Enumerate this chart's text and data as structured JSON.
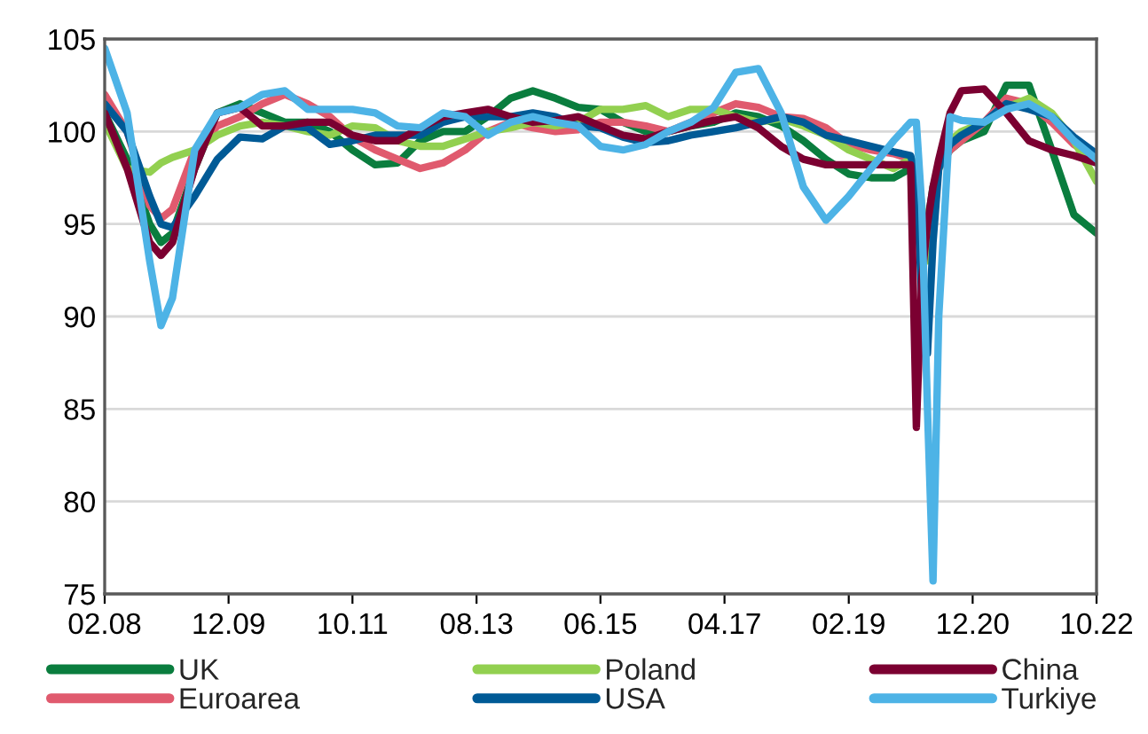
{
  "chart_data": {
    "type": "line",
    "x": [
      "2008-02",
      "2008-06",
      "2008-10",
      "2008-12",
      "2009-02",
      "2009-06",
      "2009-10",
      "2010-02",
      "2010-06",
      "2010-10",
      "2011-02",
      "2011-06",
      "2011-10",
      "2012-02",
      "2012-06",
      "2012-10",
      "2013-02",
      "2013-06",
      "2013-10",
      "2014-02",
      "2014-06",
      "2014-10",
      "2015-02",
      "2015-06",
      "2015-10",
      "2016-02",
      "2016-06",
      "2016-10",
      "2017-02",
      "2017-06",
      "2017-10",
      "2018-02",
      "2018-06",
      "2018-10",
      "2019-02",
      "2019-06",
      "2019-10",
      "2020-01",
      "2020-02",
      "2020-03",
      "2020-04",
      "2020-05",
      "2020-06",
      "2020-08",
      "2020-10",
      "2021-02",
      "2021-06",
      "2021-10",
      "2022-02",
      "2022-06",
      "2022-10"
    ],
    "series": [
      {
        "name": "UK",
        "color": "#0a7d3e",
        "values": [
          101,
          98.5,
          95,
          94,
          94.5,
          98,
          101,
          101.5,
          101,
          100.5,
          100.5,
          100,
          99,
          98.2,
          98.3,
          99.5,
          100,
          100,
          100.8,
          101.8,
          102.2,
          101.8,
          101.3,
          101.2,
          100.5,
          100,
          100,
          100.3,
          100.5,
          101,
          100.8,
          100.3,
          99.5,
          98.5,
          97.7,
          97.5,
          97.5,
          98,
          97.5,
          93,
          95,
          97,
          98,
          99,
          99.5,
          100,
          102.5,
          102.5,
          99,
          95.5,
          94.5
        ]
      },
      {
        "name": "Euroarea",
        "color": "#e05a6e",
        "values": [
          102,
          100,
          96,
          95.3,
          95.8,
          99,
          100.3,
          100.8,
          101.5,
          102,
          101.5,
          100.8,
          99.7,
          99,
          98.5,
          98,
          98.3,
          99,
          100,
          100.5,
          100.2,
          100,
          100.1,
          100.5,
          100.5,
          100.3,
          100,
          100.5,
          101,
          101.5,
          101.3,
          100.8,
          100.7,
          100.2,
          99.3,
          99,
          98.8,
          98.5,
          96,
          null,
          null,
          null,
          98,
          99,
          99.5,
          100.5,
          101.8,
          101.5,
          100.5,
          99.3,
          98.5
        ]
      },
      {
        "name": "Poland",
        "color": "#92d050",
        "values": [
          100.5,
          98,
          97.8,
          98.3,
          98.6,
          99,
          99.8,
          100.3,
          100.5,
          100.3,
          100,
          99.8,
          100.3,
          100.2,
          99.5,
          99.2,
          99.2,
          99.6,
          100,
          100.2,
          100.5,
          100.3,
          100.5,
          101.2,
          101.2,
          101.4,
          100.8,
          101.2,
          101.2,
          100.8,
          100.5,
          100.7,
          100.3,
          99.8,
          99,
          98.5,
          98,
          98.5,
          98.3,
          96,
          93,
          96,
          98,
          99.5,
          100,
          100.5,
          101.3,
          101.8,
          101,
          99.5,
          97.3
        ]
      },
      {
        "name": "USA",
        "color": "#005a96",
        "values": [
          101.5,
          100,
          96.5,
          95,
          94.8,
          96.5,
          98.5,
          99.7,
          99.6,
          100.3,
          100.2,
          99.3,
          99.5,
          99.8,
          99.8,
          99.8,
          100.5,
          100.8,
          100.8,
          100.8,
          101,
          100.8,
          100.3,
          100.2,
          99.7,
          99.4,
          99.5,
          99.8,
          100,
          100.2,
          100.5,
          100.8,
          100.5,
          99.8,
          99.5,
          99.2,
          98.9,
          98.7,
          97.5,
          91,
          88,
          94,
          98,
          99.3,
          99.8,
          100.5,
          101.5,
          101.2,
          100.8,
          99.7,
          98.8
        ]
      },
      {
        "name": "China",
        "color": "#7b0031",
        "values": [
          101,
          98,
          94,
          93.3,
          94,
          98,
          101,
          101.3,
          100.3,
          100.3,
          100.5,
          100.5,
          99.8,
          99.5,
          99.5,
          100.2,
          100.8,
          101,
          101.2,
          100.8,
          100.5,
          100.6,
          100.8,
          100.3,
          99.8,
          99.6,
          100,
          100.3,
          100.6,
          100.8,
          100.2,
          99.2,
          98.5,
          98.2,
          98.2,
          98.2,
          98.2,
          98.2,
          84,
          92,
          95,
          97,
          98.5,
          101,
          102.2,
          102.3,
          101,
          99.5,
          99,
          98.7,
          98.3
        ]
      },
      {
        "name": "Turkiye",
        "color": "#4db3e6",
        "values": [
          104.5,
          101,
          93,
          89.5,
          91,
          99,
          101,
          101.3,
          102,
          102.2,
          101.2,
          101.2,
          101.2,
          101,
          100.3,
          100.2,
          101,
          100.8,
          99.8,
          100.5,
          100.8,
          100.5,
          100.3,
          99.2,
          99,
          99.3,
          100,
          100.5,
          101.3,
          103.2,
          103.4,
          101,
          97,
          95.2,
          96.5,
          98,
          99.5,
          100.5,
          100.5,
          96,
          85,
          75.7,
          90,
          100.8,
          100.6,
          100.5,
          101.2,
          101.5,
          100.8,
          99.5,
          98.5
        ]
      }
    ],
    "xlim": [
      "2008-02",
      "2022-10"
    ],
    "xticks": [
      {
        "value": "2008-02",
        "label": "02.08"
      },
      {
        "value": "2009-12",
        "label": "12.09"
      },
      {
        "value": "2011-10",
        "label": "10.11"
      },
      {
        "value": "2013-08",
        "label": "08.13"
      },
      {
        "value": "2015-06",
        "label": "06.15"
      },
      {
        "value": "2017-04",
        "label": "04.17"
      },
      {
        "value": "2019-02",
        "label": "02.19"
      },
      {
        "value": "2020-12",
        "label": "12.20"
      },
      {
        "value": "2022-10",
        "label": "10.22"
      }
    ],
    "ylim": [
      75,
      105
    ],
    "yticks": [
      75,
      80,
      85,
      90,
      95,
      100,
      105
    ],
    "grid": "y",
    "legend": "bottom",
    "marker": "none",
    "line_style": "solid"
  }
}
